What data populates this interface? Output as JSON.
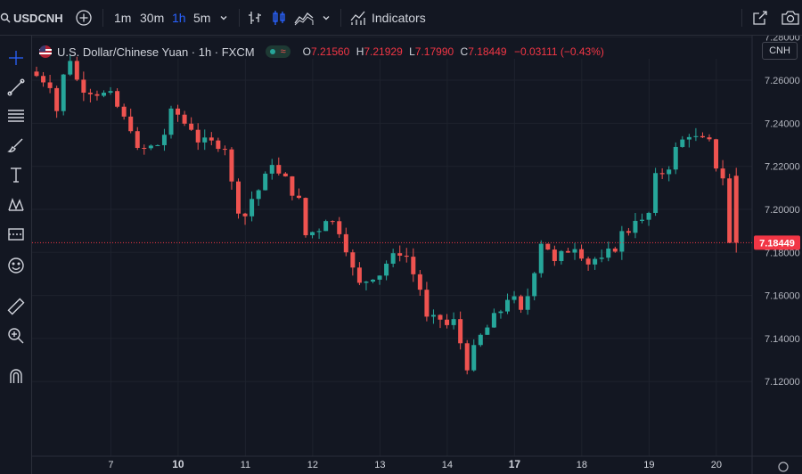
{
  "toolbar": {
    "symbol": "USDCNH",
    "intervals": [
      "1m",
      "30m",
      "1h",
      "5m"
    ],
    "active_interval": "1h",
    "indicators_label": "Indicators"
  },
  "legend": {
    "title": "U.S. Dollar/Chinese Yuan · 1h · FXCM",
    "o_key": "O",
    "o_val": "7.21560",
    "h_key": "H",
    "h_val": "7.21929",
    "l_key": "L",
    "l_val": "7.17990",
    "c_key": "C",
    "c_val": "7.18449",
    "change": "−0.03111 (−0.43%)"
  },
  "currency_button": "CNH",
  "colors": {
    "up": "#26a69a",
    "down": "#ef5350",
    "background": "#131722",
    "grid": "#1e222d",
    "accent": "#2962ff",
    "price_label": "#f23645"
  },
  "chart_data": {
    "type": "candlestick",
    "title": "U.S. Dollar/Chinese Yuan · 1h · FXCM",
    "ylim": [
      7.11,
      7.285
    ],
    "yticks": [
      7.12,
      7.14,
      7.16,
      7.18,
      7.2,
      7.22,
      7.24,
      7.26,
      7.28
    ],
    "ytick_labels": [
      "7.12000",
      "7.14000",
      "7.16000",
      "7.18000",
      "7.20000",
      "7.22000",
      "7.24000",
      "7.26000",
      "7.28000"
    ],
    "x_tick_labels": [
      "7",
      "10",
      "11",
      "12",
      "13",
      "14",
      "17",
      "18",
      "19",
      "20"
    ],
    "x_tick_bold": [
      "10",
      "17"
    ],
    "x_tick_positions": [
      8,
      18,
      28,
      38,
      48,
      58,
      68,
      78,
      88,
      98
    ],
    "current_price": 7.18449,
    "current_price_label": "7.18449",
    "grid": true,
    "anchor_path": [
      [
        0,
        7.262
      ],
      [
        2,
        7.258
      ],
      [
        3,
        7.246
      ],
      [
        4,
        7.262
      ],
      [
        5,
        7.27
      ],
      [
        6,
        7.26
      ],
      [
        7,
        7.256
      ],
      [
        9,
        7.254
      ],
      [
        11,
        7.253
      ],
      [
        13,
        7.242
      ],
      [
        14,
        7.238
      ],
      [
        15,
        7.227
      ],
      [
        16,
        7.228
      ],
      [
        18,
        7.23
      ],
      [
        19,
        7.235
      ],
      [
        20,
        7.245
      ],
      [
        21,
        7.244
      ],
      [
        22,
        7.24
      ],
      [
        23,
        7.238
      ],
      [
        24,
        7.232
      ],
      [
        26,
        7.231
      ],
      [
        28,
        7.229
      ],
      [
        29,
        7.212
      ],
      [
        30,
        7.2
      ],
      [
        31,
        7.197
      ],
      [
        32,
        7.205
      ],
      [
        33,
        7.209
      ],
      [
        34,
        7.215
      ],
      [
        35,
        7.222
      ],
      [
        36,
        7.216
      ],
      [
        37,
        7.214
      ],
      [
        38,
        7.208
      ],
      [
        39,
        7.204
      ],
      [
        40,
        7.188
      ],
      [
        42,
        7.191
      ],
      [
        43,
        7.196
      ],
      [
        44,
        7.194
      ],
      [
        45,
        7.19
      ],
      [
        46,
        7.182
      ],
      [
        47,
        7.172
      ],
      [
        48,
        7.165
      ],
      [
        49,
        7.167
      ],
      [
        50,
        7.169
      ],
      [
        51,
        7.17
      ],
      [
        52,
        7.175
      ],
      [
        53,
        7.178
      ],
      [
        54,
        7.18
      ],
      [
        55,
        7.178
      ],
      [
        56,
        7.17
      ],
      [
        57,
        7.163
      ],
      [
        58,
        7.149
      ],
      [
        60,
        7.149
      ],
      [
        61,
        7.146
      ],
      [
        62,
        7.148
      ],
      [
        63,
        7.138
      ],
      [
        64,
        7.127
      ],
      [
        65,
        7.135
      ],
      [
        66,
        7.141
      ],
      [
        67,
        7.145
      ],
      [
        68,
        7.15
      ],
      [
        69,
        7.153
      ],
      [
        70,
        7.159
      ],
      [
        71,
        7.158
      ],
      [
        72,
        7.152
      ],
      [
        73,
        7.16
      ],
      [
        74,
        7.172
      ],
      [
        75,
        7.185
      ],
      [
        76,
        7.182
      ],
      [
        77,
        7.175
      ],
      [
        78,
        7.179
      ],
      [
        79,
        7.181
      ],
      [
        80,
        7.183
      ],
      [
        81,
        7.179
      ],
      [
        82,
        7.175
      ],
      [
        83,
        7.177
      ],
      [
        84,
        7.176
      ],
      [
        85,
        7.18
      ],
      [
        86,
        7.182
      ],
      [
        87,
        7.189
      ],
      [
        88,
        7.19
      ],
      [
        89,
        7.196
      ],
      [
        90,
        7.194
      ],
      [
        91,
        7.198
      ],
      [
        92,
        7.215
      ],
      [
        93,
        7.217
      ],
      [
        94,
        7.22
      ],
      [
        95,
        7.228
      ],
      [
        96,
        7.232
      ],
      [
        97,
        7.235
      ],
      [
        98,
        7.233
      ],
      [
        99,
        7.232
      ],
      [
        100,
        7.231
      ],
      [
        101,
        7.22
      ],
      [
        102,
        7.215
      ],
      [
        103,
        7.184
      ]
    ]
  }
}
